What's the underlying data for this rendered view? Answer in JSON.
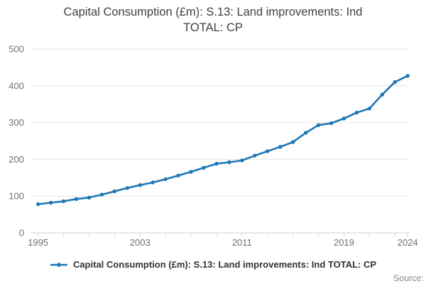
{
  "title": {
    "text": "Capital Consumption (£m): S.13: Land improvements: Ind TOTAL: CP"
  },
  "legend": {
    "marker_icon": "line-with-dot-icon",
    "label": "Capital Consumption (£m): S.13: Land improvements: Ind TOTAL: CP"
  },
  "source": {
    "label": "Source:"
  },
  "colors": {
    "line": "#1f77b4",
    "grid": "#e6e6e6",
    "axis": "#c9d5e2",
    "tick_label": "#707070",
    "title_text": "#414042",
    "legend_text": "#333333",
    "source_text": "#8c8c8c",
    "background": "#ffffff"
  },
  "chart_data": {
    "type": "line",
    "title": "Capital Consumption (£m): S.13: Land improvements: Ind TOTAL: CP",
    "xlabel": "",
    "ylabel": "",
    "x_range": [
      1995,
      2024
    ],
    "ylim": [
      0,
      500
    ],
    "y_ticks": [
      0,
      100,
      200,
      300,
      400,
      500
    ],
    "x_labeled_ticks": [
      1995,
      2003,
      2011,
      2019,
      2024
    ],
    "x_minor_tick_step_years": 2,
    "grid": "horizontal",
    "legend_position": "bottom",
    "marker_shape": "circle",
    "x": [
      1995,
      1996,
      1997,
      1998,
      1999,
      2000,
      2001,
      2002,
      2003,
      2004,
      2005,
      2006,
      2007,
      2008,
      2009,
      2010,
      2011,
      2012,
      2013,
      2014,
      2015,
      2016,
      2017,
      2018,
      2019,
      2020,
      2021,
      2022,
      2023,
      2024
    ],
    "series": [
      {
        "name": "Capital Consumption (£m): S.13: Land improvements: Ind TOTAL: CP",
        "color": "#1f77b4",
        "values": [
          78,
          82,
          86,
          92,
          96,
          104,
          113,
          122,
          130,
          137,
          146,
          156,
          166,
          177,
          188,
          192,
          197,
          210,
          222,
          234,
          247,
          272,
          293,
          298,
          311,
          327,
          338,
          376,
          410,
          427
        ]
      }
    ]
  }
}
